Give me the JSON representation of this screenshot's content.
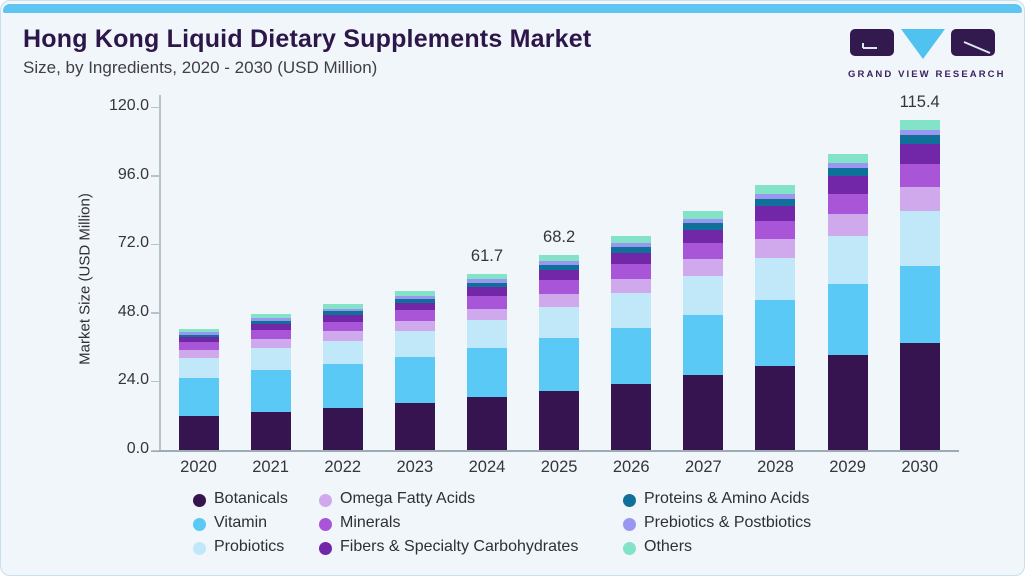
{
  "header": {
    "title": "Hong Kong Liquid Dietary Supplements Market",
    "subtitle": "Size, by Ingredients, 2020 - 2030 (USD Million)",
    "logo_text": "GRAND VIEW RESEARCH"
  },
  "colors": {
    "accent_bar": "#5ec4f0",
    "card_bg": "#f0f6fa",
    "card_border": "#c9dfee",
    "title_text": "#2d1649",
    "logo_purple": "#321a4f",
    "logo_blue": "#4fc2ef",
    "axis_line": "#b7c3cc",
    "baseline": "#9fabb4"
  },
  "chart_data": {
    "type": "bar",
    "stacked": true,
    "title": "Hong Kong Liquid Dietary Supplements Market",
    "subtitle": "Size, by Ingredients, 2020 - 2030 (USD Million)",
    "xlabel": "",
    "ylabel": "Market Size (USD Million)",
    "ylim": [
      0,
      120
    ],
    "yticks": [
      0,
      24,
      48,
      72,
      96,
      120
    ],
    "ytick_labels": [
      "0.0",
      "24.0",
      "48.0",
      "72.0",
      "96.0",
      "120.0"
    ],
    "grid": false,
    "legend_position": "bottom",
    "categories": [
      "2020",
      "2021",
      "2022",
      "2023",
      "2024",
      "2025",
      "2026",
      "2027",
      "2028",
      "2029",
      "2030"
    ],
    "series": [
      {
        "name": "Botanicals",
        "color": "#351450",
        "values": [
          11.9,
          13.4,
          14.8,
          16.5,
          18.6,
          20.6,
          23.2,
          26.1,
          29.4,
          33.1,
          37.3
        ]
      },
      {
        "name": "Vitamin",
        "color": "#5bc9f5",
        "values": [
          13.2,
          14.5,
          15.1,
          16.0,
          17.1,
          18.5,
          19.6,
          21.2,
          23.1,
          24.9,
          27.2
        ]
      },
      {
        "name": "Probiotics",
        "color": "#c0e8f9",
        "values": [
          7.0,
          7.8,
          8.3,
          9.0,
          9.9,
          11.0,
          12.0,
          13.6,
          14.8,
          17.0,
          19.1
        ]
      },
      {
        "name": "Omega Fatty Acids",
        "color": "#cfa9ec",
        "values": [
          2.7,
          3.1,
          3.3,
          3.6,
          3.8,
          4.6,
          5.1,
          5.8,
          6.4,
          7.5,
          8.5
        ]
      },
      {
        "name": "Minerals",
        "color": "#a855d8",
        "values": [
          2.9,
          3.2,
          3.4,
          3.7,
          4.4,
          4.6,
          5.0,
          5.6,
          6.3,
          7.2,
          7.9
        ]
      },
      {
        "name": "Fibers & Specialty Carbohydrates",
        "color": "#7226a8",
        "values": [
          1.7,
          2.0,
          2.3,
          2.7,
          3.1,
          3.6,
          4.1,
          4.7,
          5.3,
          6.1,
          7.0
        ]
      },
      {
        "name": "Proteins & Amino Acids",
        "color": "#0f7099",
        "values": [
          1.0,
          1.1,
          1.3,
          1.4,
          1.6,
          1.8,
          2.0,
          2.3,
          2.6,
          2.9,
          3.2
        ]
      },
      {
        "name": "Prebiotics & Postbiotics",
        "color": "#9a97f0",
        "values": [
          0.9,
          1.0,
          1.0,
          1.1,
          1.2,
          1.3,
          1.4,
          1.5,
          1.6,
          1.7,
          1.8
        ]
      },
      {
        "name": "Others",
        "color": "#82e3c6",
        "values": [
          1.1,
          1.4,
          1.5,
          1.7,
          2.0,
          2.2,
          2.5,
          2.8,
          3.1,
          3.3,
          3.4
        ]
      }
    ],
    "bar_total_labels": {
      "2024": "61.7",
      "2025": "68.2",
      "2030": "115.4"
    }
  }
}
